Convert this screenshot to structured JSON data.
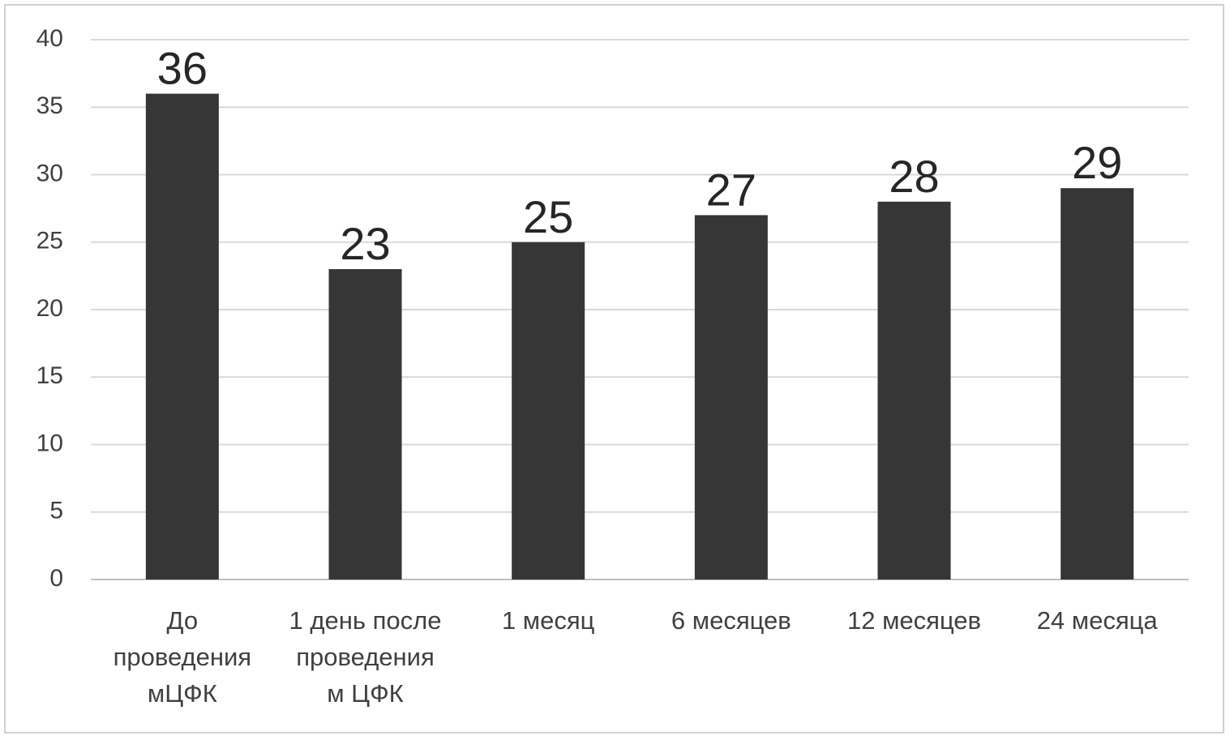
{
  "chart_data": {
    "type": "bar",
    "title": "",
    "xlabel": "",
    "ylabel": "",
    "categories": [
      [
        "До",
        "проведения",
        "мЦФК"
      ],
      [
        "1 день после",
        "проведения",
        "м ЦФК"
      ],
      [
        "1 месяц"
      ],
      [
        "6 месяцев"
      ],
      [
        "12 месяцев"
      ],
      [
        "24 месяца"
      ]
    ],
    "values": [
      36,
      23,
      25,
      27,
      28,
      29
    ],
    "data_labels": [
      "36",
      "23",
      "25",
      "27",
      "28",
      "29"
    ],
    "ylim": [
      0,
      40
    ],
    "yticks": [
      0,
      5,
      10,
      15,
      20,
      25,
      30,
      35,
      40
    ],
    "ytick_labels": [
      "0",
      "5",
      "10",
      "15",
      "20",
      "25",
      "30",
      "35",
      "40"
    ],
    "grid": true,
    "legend": "none",
    "colors": {
      "bar": "#363636",
      "grid": "#d9d9d9",
      "axis": "#bfbfbf",
      "border": "#d0d0d0"
    }
  }
}
